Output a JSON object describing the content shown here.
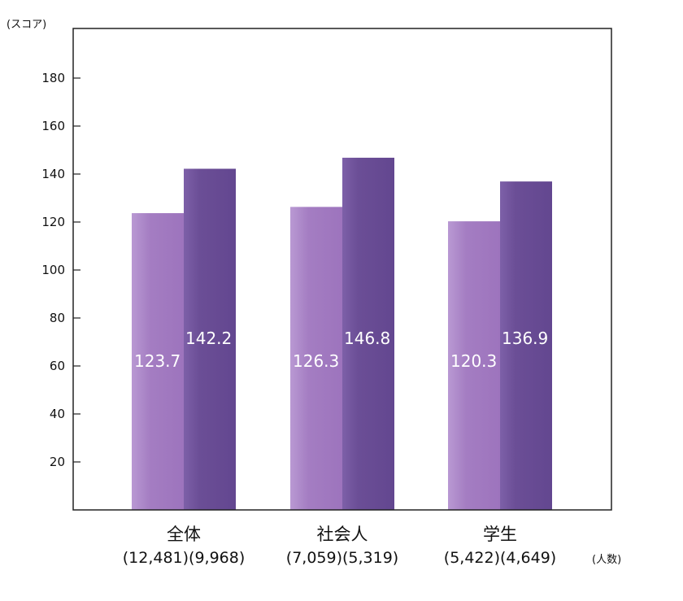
{
  "chart_data": {
    "type": "bar",
    "ylabel": "(スコア)",
    "xlabel": "(人数)",
    "ylim": [
      0,
      200
    ],
    "yticks": [
      20,
      40,
      60,
      80,
      100,
      120,
      140,
      160,
      180
    ],
    "categories": [
      "全体",
      "社会人",
      "学生"
    ],
    "counts": [
      [
        "(12,481)",
        "(9,968)"
      ],
      [
        "(7,059)",
        "(5,319)"
      ],
      [
        "(5,422)",
        "(4,649)"
      ]
    ],
    "series": [
      {
        "values": [
          123.7,
          126.3,
          120.3
        ],
        "color": "#a27bc0"
      },
      {
        "values": [
          142.2,
          146.8,
          136.9
        ],
        "color": "#6a4d94"
      }
    ],
    "grid": false
  }
}
